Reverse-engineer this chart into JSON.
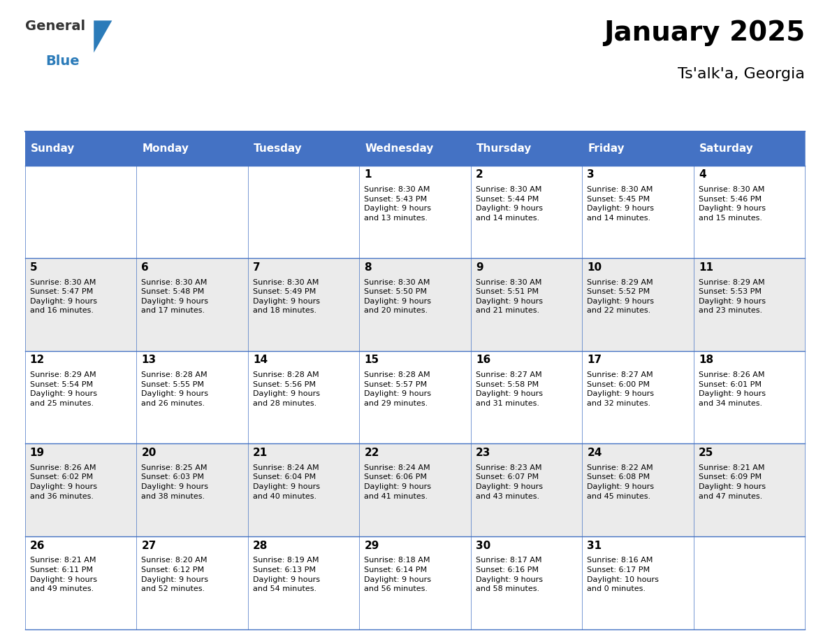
{
  "title": "January 2025",
  "subtitle": "Ts'alk'a, Georgia",
  "header_color": "#4472C4",
  "header_text_color": "#FFFFFF",
  "cell_bg_even": "#FFFFFF",
  "cell_bg_odd": "#EBEBEB",
  "border_color": "#4472C4",
  "text_color": "#000000",
  "days_of_week": [
    "Sunday",
    "Monday",
    "Tuesday",
    "Wednesday",
    "Thursday",
    "Friday",
    "Saturday"
  ],
  "calendar_data": [
    [
      {
        "day": "",
        "info": ""
      },
      {
        "day": "",
        "info": ""
      },
      {
        "day": "",
        "info": ""
      },
      {
        "day": "1",
        "info": "Sunrise: 8:30 AM\nSunset: 5:43 PM\nDaylight: 9 hours\nand 13 minutes."
      },
      {
        "day": "2",
        "info": "Sunrise: 8:30 AM\nSunset: 5:44 PM\nDaylight: 9 hours\nand 14 minutes."
      },
      {
        "day": "3",
        "info": "Sunrise: 8:30 AM\nSunset: 5:45 PM\nDaylight: 9 hours\nand 14 minutes."
      },
      {
        "day": "4",
        "info": "Sunrise: 8:30 AM\nSunset: 5:46 PM\nDaylight: 9 hours\nand 15 minutes."
      }
    ],
    [
      {
        "day": "5",
        "info": "Sunrise: 8:30 AM\nSunset: 5:47 PM\nDaylight: 9 hours\nand 16 minutes."
      },
      {
        "day": "6",
        "info": "Sunrise: 8:30 AM\nSunset: 5:48 PM\nDaylight: 9 hours\nand 17 minutes."
      },
      {
        "day": "7",
        "info": "Sunrise: 8:30 AM\nSunset: 5:49 PM\nDaylight: 9 hours\nand 18 minutes."
      },
      {
        "day": "8",
        "info": "Sunrise: 8:30 AM\nSunset: 5:50 PM\nDaylight: 9 hours\nand 20 minutes."
      },
      {
        "day": "9",
        "info": "Sunrise: 8:30 AM\nSunset: 5:51 PM\nDaylight: 9 hours\nand 21 minutes."
      },
      {
        "day": "10",
        "info": "Sunrise: 8:29 AM\nSunset: 5:52 PM\nDaylight: 9 hours\nand 22 minutes."
      },
      {
        "day": "11",
        "info": "Sunrise: 8:29 AM\nSunset: 5:53 PM\nDaylight: 9 hours\nand 23 minutes."
      }
    ],
    [
      {
        "day": "12",
        "info": "Sunrise: 8:29 AM\nSunset: 5:54 PM\nDaylight: 9 hours\nand 25 minutes."
      },
      {
        "day": "13",
        "info": "Sunrise: 8:28 AM\nSunset: 5:55 PM\nDaylight: 9 hours\nand 26 minutes."
      },
      {
        "day": "14",
        "info": "Sunrise: 8:28 AM\nSunset: 5:56 PM\nDaylight: 9 hours\nand 28 minutes."
      },
      {
        "day": "15",
        "info": "Sunrise: 8:28 AM\nSunset: 5:57 PM\nDaylight: 9 hours\nand 29 minutes."
      },
      {
        "day": "16",
        "info": "Sunrise: 8:27 AM\nSunset: 5:58 PM\nDaylight: 9 hours\nand 31 minutes."
      },
      {
        "day": "17",
        "info": "Sunrise: 8:27 AM\nSunset: 6:00 PM\nDaylight: 9 hours\nand 32 minutes."
      },
      {
        "day": "18",
        "info": "Sunrise: 8:26 AM\nSunset: 6:01 PM\nDaylight: 9 hours\nand 34 minutes."
      }
    ],
    [
      {
        "day": "19",
        "info": "Sunrise: 8:26 AM\nSunset: 6:02 PM\nDaylight: 9 hours\nand 36 minutes."
      },
      {
        "day": "20",
        "info": "Sunrise: 8:25 AM\nSunset: 6:03 PM\nDaylight: 9 hours\nand 38 minutes."
      },
      {
        "day": "21",
        "info": "Sunrise: 8:24 AM\nSunset: 6:04 PM\nDaylight: 9 hours\nand 40 minutes."
      },
      {
        "day": "22",
        "info": "Sunrise: 8:24 AM\nSunset: 6:06 PM\nDaylight: 9 hours\nand 41 minutes."
      },
      {
        "day": "23",
        "info": "Sunrise: 8:23 AM\nSunset: 6:07 PM\nDaylight: 9 hours\nand 43 minutes."
      },
      {
        "day": "24",
        "info": "Sunrise: 8:22 AM\nSunset: 6:08 PM\nDaylight: 9 hours\nand 45 minutes."
      },
      {
        "day": "25",
        "info": "Sunrise: 8:21 AM\nSunset: 6:09 PM\nDaylight: 9 hours\nand 47 minutes."
      }
    ],
    [
      {
        "day": "26",
        "info": "Sunrise: 8:21 AM\nSunset: 6:11 PM\nDaylight: 9 hours\nand 49 minutes."
      },
      {
        "day": "27",
        "info": "Sunrise: 8:20 AM\nSunset: 6:12 PM\nDaylight: 9 hours\nand 52 minutes."
      },
      {
        "day": "28",
        "info": "Sunrise: 8:19 AM\nSunset: 6:13 PM\nDaylight: 9 hours\nand 54 minutes."
      },
      {
        "day": "29",
        "info": "Sunrise: 8:18 AM\nSunset: 6:14 PM\nDaylight: 9 hours\nand 56 minutes."
      },
      {
        "day": "30",
        "info": "Sunrise: 8:17 AM\nSunset: 6:16 PM\nDaylight: 9 hours\nand 58 minutes."
      },
      {
        "day": "31",
        "info": "Sunrise: 8:16 AM\nSunset: 6:17 PM\nDaylight: 10 hours\nand 0 minutes."
      },
      {
        "day": "",
        "info": ""
      }
    ]
  ],
  "logo_general_color": "#333333",
  "logo_blue_color": "#2B7BB9",
  "logo_triangle_color": "#2B7BB9",
  "title_fontsize": 28,
  "subtitle_fontsize": 16,
  "header_fontsize": 11,
  "day_num_fontsize": 11,
  "cell_text_fontsize": 8
}
